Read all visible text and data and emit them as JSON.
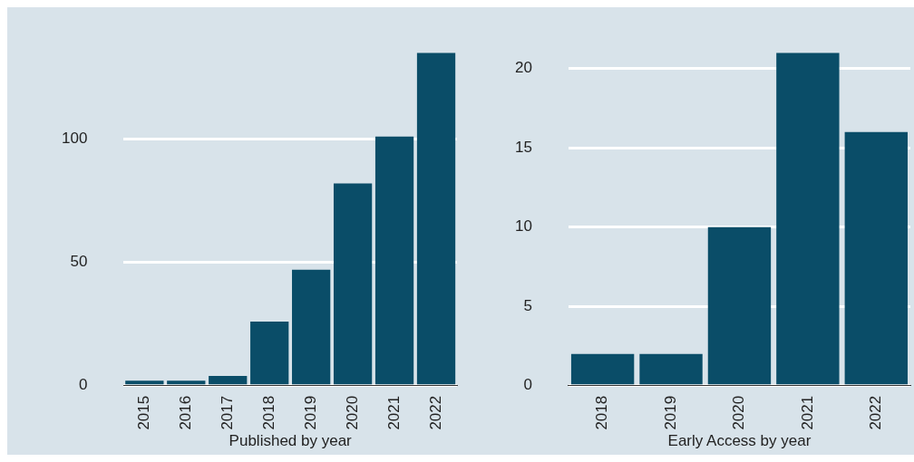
{
  "chart_data": [
    {
      "type": "bar",
      "xlabel": "Published by year",
      "categories": [
        "2015",
        "2016",
        "2017",
        "2018",
        "2019",
        "2020",
        "2021",
        "2022"
      ],
      "values": [
        2,
        2,
        4,
        26,
        47,
        82,
        101,
        135
      ],
      "color": "#0a4d68",
      "ylim": [
        0,
        135
      ],
      "yticks": [
        0,
        50,
        100
      ],
      "grid": "y"
    },
    {
      "type": "bar",
      "xlabel": "Early Access by year",
      "categories": [
        "2018",
        "2019",
        "2020",
        "2021",
        "2022"
      ],
      "values": [
        2,
        2,
        10,
        21,
        16
      ],
      "color": "#0a4d68",
      "ylim": [
        0,
        21
      ],
      "yticks": [
        0,
        5,
        10,
        15,
        20
      ],
      "grid": "y"
    }
  ]
}
